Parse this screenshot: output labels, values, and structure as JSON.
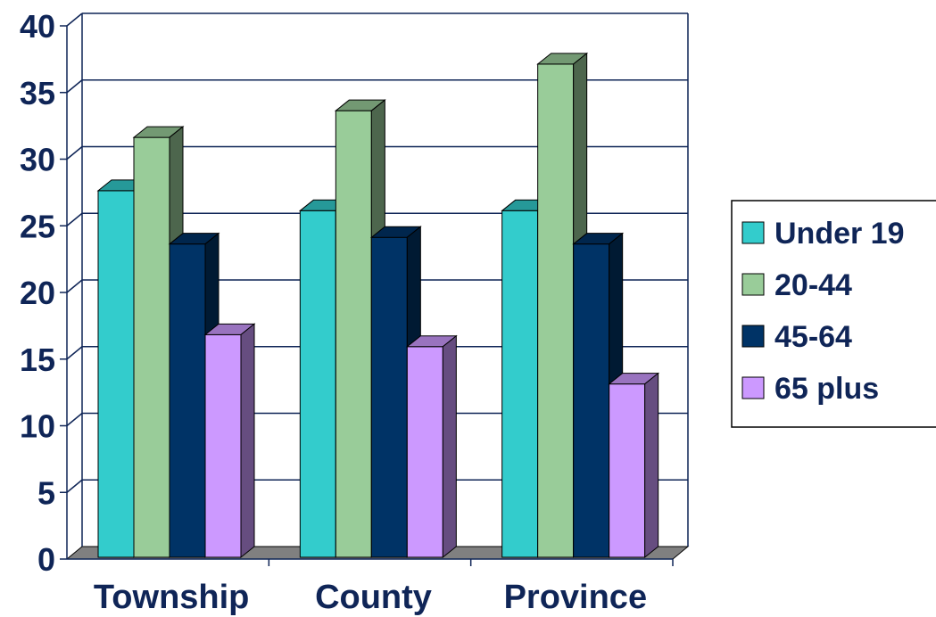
{
  "chart_data": {
    "type": "bar",
    "categories": [
      "Township",
      "County",
      "Province"
    ],
    "series": [
      {
        "name": "Under 19",
        "values": [
          27.5,
          26,
          26
        ]
      },
      {
        "name": "20-44",
        "values": [
          31.5,
          33.5,
          37
        ]
      },
      {
        "name": "45-64",
        "values": [
          23.5,
          24,
          23.5
        ]
      },
      {
        "name": "65 plus",
        "values": [
          16.7,
          15.8,
          13
        ]
      }
    ],
    "ylim": [
      0,
      40
    ],
    "yticks": [
      "0",
      "5",
      "10",
      "15",
      "20",
      "25",
      "30",
      "35",
      "40"
    ],
    "grid": true,
    "legend": "right",
    "colors": {
      "Under 19": "#33cccc",
      "20-44": "#99cc99",
      "45-64": "#003366",
      "65 plus": "#cc99ff",
      "floor": "#808080",
      "axis": "#0f2557"
    }
  }
}
